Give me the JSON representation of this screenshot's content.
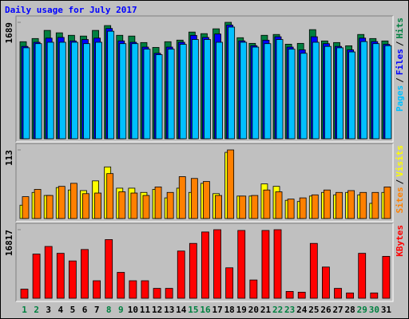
{
  "chart_data": [
    {
      "type": "bar",
      "title": "Daily usage for July 2017",
      "legend_separator": "/",
      "ylim": [
        0,
        1689
      ],
      "yticks": [
        1689
      ],
      "series": [
        {
          "name": "Hits",
          "color": "#008040",
          "values": [
            1408,
            1454,
            1572,
            1537,
            1501,
            1490,
            1572,
            1642,
            1501,
            1490,
            1396,
            1325,
            1408,
            1431,
            1548,
            1525,
            1595,
            1689,
            1466,
            1384,
            1501,
            1513,
            1372,
            1384,
            1583,
            1419,
            1396,
            1349,
            1513,
            1454,
            1419
          ]
        },
        {
          "name": "Files",
          "color": "#0000FF",
          "values": [
            1340,
            1400,
            1460,
            1470,
            1420,
            1440,
            1460,
            1600,
            1420,
            1400,
            1330,
            1240,
            1330,
            1400,
            1500,
            1470,
            1520,
            1650,
            1420,
            1350,
            1430,
            1480,
            1330,
            1290,
            1480,
            1380,
            1340,
            1290,
            1460,
            1410,
            1370
          ]
        },
        {
          "name": "Pages",
          "color": "#00C0FF",
          "values": [
            1320,
            1380,
            1400,
            1400,
            1400,
            1380,
            1400,
            1560,
            1380,
            1380,
            1300,
            1220,
            1300,
            1370,
            1440,
            1440,
            1400,
            1620,
            1400,
            1330,
            1380,
            1440,
            1300,
            1240,
            1400,
            1340,
            1320,
            1260,
            1410,
            1380,
            1350
          ]
        }
      ]
    },
    {
      "type": "bar",
      "legend_separator": "/",
      "ylim": [
        0,
        113
      ],
      "yticks": [
        113
      ],
      "series": [
        {
          "name": "Visits",
          "color": "#FFFF00",
          "values": [
            22,
            43,
            38,
            51,
            47,
            46,
            62,
            85,
            50,
            50,
            43,
            48,
            34,
            50,
            43,
            58,
            41,
            109,
            37,
            37,
            57,
            53,
            30,
            28,
            37,
            43,
            39,
            43,
            39,
            25,
            43
          ]
        },
        {
          "name": "Sites",
          "color": "#FF8000",
          "values": [
            36,
            48,
            38,
            53,
            58,
            41,
            42,
            74,
            44,
            42,
            38,
            52,
            43,
            69,
            66,
            61,
            38,
            113,
            37,
            38,
            47,
            44,
            32,
            34,
            39,
            47,
            43,
            46,
            43,
            43,
            52
          ]
        }
      ]
    },
    {
      "type": "bar",
      "ylim": [
        0,
        16817
      ],
      "yticks": [
        16817
      ],
      "series": [
        {
          "name": "KBytes",
          "color": "#FF0000",
          "values": [
            2242,
            10838,
            12706,
            11025,
            9156,
            11959,
            4298,
            14388,
            6353,
            4298,
            4298,
            2429,
            2429,
            11585,
            13454,
            16256,
            16817,
            7474,
            16630,
            4485,
            16630,
            16817,
            1682,
            1495,
            13454,
            7661,
            2429,
            1308,
            11025,
            1308,
            10277
          ]
        }
      ],
      "categories": [
        "1",
        "2",
        "3",
        "4",
        "5",
        "6",
        "7",
        "8",
        "9",
        "10",
        "11",
        "12",
        "13",
        "14",
        "15",
        "16",
        "17",
        "18",
        "19",
        "20",
        "21",
        "22",
        "23",
        "24",
        "25",
        "26",
        "27",
        "28",
        "29",
        "30",
        "31"
      ],
      "category_colors": [
        "#008040",
        "#008040",
        "#000000",
        "#000000",
        "#000000",
        "#000000",
        "#000000",
        "#008040",
        "#008040",
        "#000000",
        "#000000",
        "#000000",
        "#000000",
        "#000000",
        "#008040",
        "#008040",
        "#000000",
        "#000000",
        "#000000",
        "#000000",
        "#000000",
        "#008040",
        "#008040",
        "#000000",
        "#000000",
        "#000000",
        "#000000",
        "#000000",
        "#008040",
        "#008040",
        "#000000"
      ]
    }
  ]
}
